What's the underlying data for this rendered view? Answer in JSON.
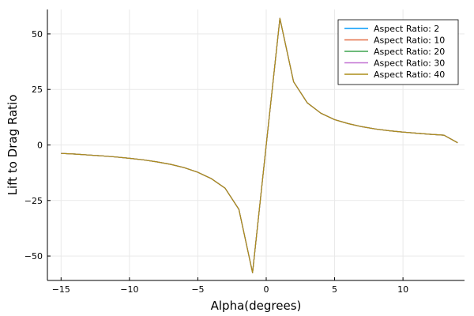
{
  "chart_data": {
    "type": "line",
    "title": "",
    "xlabel": "Alpha(degrees)",
    "ylabel": "Lift to Drag Ratio",
    "xlim": [
      -16,
      14.5
    ],
    "ylim": [
      -61,
      61
    ],
    "xticks": [
      -15,
      -10,
      -5,
      0,
      5,
      10
    ],
    "yticks": [
      -50,
      -25,
      0,
      25,
      50
    ],
    "xtick_labels": [
      "−15",
      "−10",
      "−5",
      "0",
      "5",
      "10"
    ],
    "ytick_labels": [
      "−50",
      "−25",
      "0",
      "25",
      "50"
    ],
    "grid": true,
    "legend_position": "top-right",
    "x": [
      -15,
      -14,
      -13,
      -12,
      -11,
      -10,
      -9,
      -8,
      -7,
      -6,
      -5,
      -4,
      -3,
      -2,
      -1,
      0,
      1,
      2,
      3,
      4,
      5,
      6,
      7,
      8,
      9,
      10,
      11,
      12,
      13,
      14
    ],
    "series": [
      {
        "name": "Aspect Ratio: 2",
        "color": "#009AFA",
        "values": [
          -3.8,
          -4.1,
          -4.5,
          -4.9,
          -5.4,
          -6.0,
          -6.7,
          -7.6,
          -8.7,
          -10.2,
          -12.3,
          -15.2,
          -19.5,
          -29.0,
          -57.5,
          0,
          57.0,
          28.5,
          19.0,
          14.3,
          11.4,
          9.6,
          8.2,
          7.2,
          6.4,
          5.8,
          5.3,
          4.8,
          4.4,
          1.0
        ]
      },
      {
        "name": "Aspect Ratio: 10",
        "color": "#E36F47",
        "values": [
          -3.8,
          -4.1,
          -4.5,
          -4.9,
          -5.4,
          -6.0,
          -6.7,
          -7.6,
          -8.7,
          -10.2,
          -12.3,
          -15.2,
          -19.5,
          -29.0,
          -57.5,
          0,
          57.0,
          28.5,
          19.0,
          14.3,
          11.4,
          9.6,
          8.2,
          7.2,
          6.4,
          5.8,
          5.3,
          4.8,
          4.4,
          1.0
        ]
      },
      {
        "name": "Aspect Ratio: 20",
        "color": "#3EA44E",
        "values": [
          -3.8,
          -4.1,
          -4.5,
          -4.9,
          -5.4,
          -6.0,
          -6.7,
          -7.6,
          -8.7,
          -10.2,
          -12.3,
          -15.2,
          -19.5,
          -29.0,
          -57.5,
          0,
          57.0,
          28.5,
          19.0,
          14.3,
          11.4,
          9.6,
          8.2,
          7.2,
          6.4,
          5.8,
          5.3,
          4.8,
          4.4,
          1.0
        ]
      },
      {
        "name": "Aspect Ratio: 30",
        "color": "#C271D2",
        "values": [
          -3.8,
          -4.1,
          -4.5,
          -4.9,
          -5.4,
          -6.0,
          -6.7,
          -7.6,
          -8.7,
          -10.2,
          -12.3,
          -15.2,
          -19.5,
          -29.0,
          -57.5,
          0,
          57.0,
          28.5,
          19.0,
          14.3,
          11.4,
          9.6,
          8.2,
          7.2,
          6.4,
          5.8,
          5.3,
          4.8,
          4.4,
          1.0
        ]
      },
      {
        "name": "Aspect Ratio: 40",
        "color": "#AC8D18",
        "values": [
          -3.8,
          -4.1,
          -4.5,
          -4.9,
          -5.4,
          -6.0,
          -6.7,
          -7.6,
          -8.7,
          -10.2,
          -12.3,
          -15.2,
          -19.5,
          -29.0,
          -57.5,
          0,
          57.0,
          28.5,
          19.0,
          14.3,
          11.4,
          9.6,
          8.2,
          7.2,
          6.4,
          5.8,
          5.3,
          4.8,
          4.4,
          1.0
        ]
      }
    ]
  }
}
